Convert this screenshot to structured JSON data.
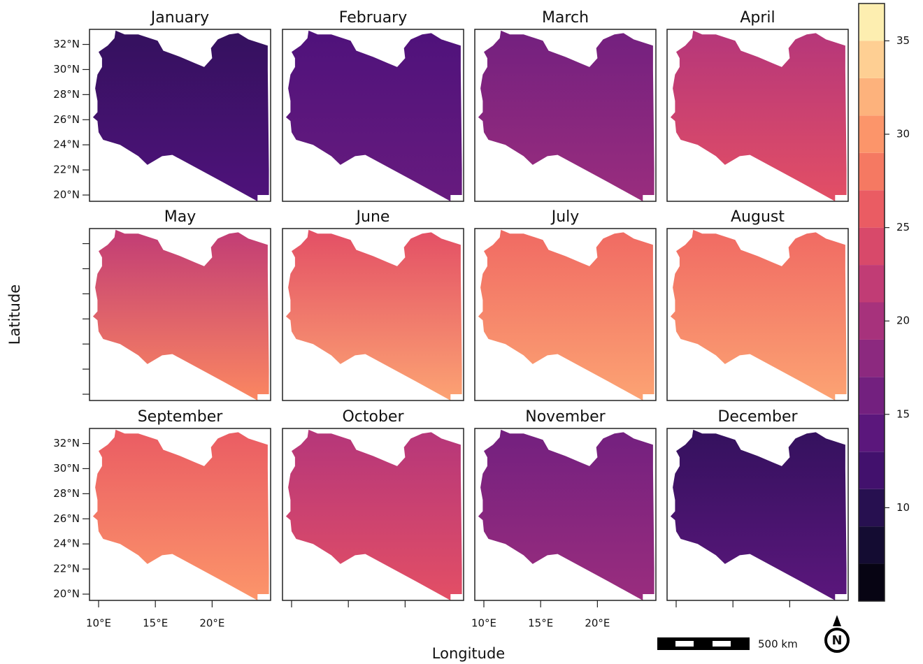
{
  "panels": [
    {
      "title": "January",
      "north": 11,
      "south": 13
    },
    {
      "title": "February",
      "north": 13,
      "south": 15
    },
    {
      "title": "March",
      "north": 16,
      "south": 19
    },
    {
      "title": "April",
      "north": 21,
      "south": 25
    },
    {
      "title": "May",
      "north": 22,
      "south": 29
    },
    {
      "title": "June",
      "north": 25,
      "south": 31
    },
    {
      "title": "July",
      "north": 27,
      "south": 31
    },
    {
      "title": "August",
      "north": 27,
      "south": 31
    },
    {
      "title": "September",
      "north": 26,
      "south": 30
    },
    {
      "title": "October",
      "north": 21,
      "south": 25
    },
    {
      "title": "November",
      "north": 16,
      "south": 19
    },
    {
      "title": "December",
      "north": 11,
      "south": 14
    }
  ],
  "axis": {
    "y_label": "Latitude",
    "x_label": "Longitude",
    "lat_range": [
      19.5,
      33.2
    ],
    "lon_range": [
      9.2,
      25.15
    ],
    "lat_ticks": [
      {
        "value": 32,
        "label": "32°N"
      },
      {
        "value": 30,
        "label": "30°N"
      },
      {
        "value": 28,
        "label": "28°N"
      },
      {
        "value": 26,
        "label": "26°N"
      },
      {
        "value": 24,
        "label": "24°N"
      },
      {
        "value": 22,
        "label": "22°N"
      },
      {
        "value": 20,
        "label": "20°N"
      }
    ],
    "lon_ticks": [
      {
        "value": 10,
        "label": "10°E"
      },
      {
        "value": 15,
        "label": "15°E"
      },
      {
        "value": 20,
        "label": "20°E"
      }
    ]
  },
  "colorbar": {
    "breaks": [
      5,
      7,
      9,
      11,
      13,
      15,
      17,
      19,
      21,
      23,
      25,
      27,
      29,
      31,
      33,
      35,
      37
    ],
    "ticks": [
      10,
      15,
      20,
      25,
      30,
      35
    ]
  },
  "scale_bar": {
    "label": "500 km"
  },
  "north_arrow": {
    "label": "N"
  }
}
